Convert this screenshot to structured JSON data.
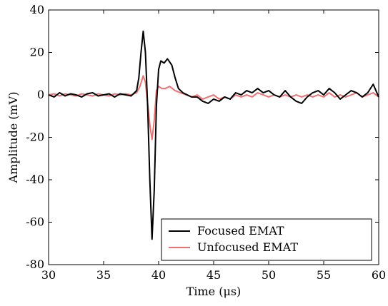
{
  "chart_data": {
    "type": "line",
    "title": "",
    "xlabel": "Time (μs)",
    "ylabel": "Amplitude (mV)",
    "xlim": [
      30,
      60
    ],
    "ylim": [
      -80,
      40
    ],
    "x_ticks": [
      30,
      35,
      40,
      45,
      50,
      55,
      60
    ],
    "y_ticks": [
      -80,
      -60,
      -40,
      -20,
      0,
      20,
      40
    ],
    "x_tick_labels": [
      "30",
      "35",
      "40",
      "45",
      "50",
      "55",
      "60"
    ],
    "y_tick_labels": [
      "-80",
      "-60",
      "-40",
      "-20",
      "0",
      "20",
      "40"
    ],
    "grid": false,
    "legend_position": "lower-right",
    "series": [
      {
        "name": "Focused EMAT",
        "color": "#000000",
        "x": [
          30,
          30.5,
          31,
          31.5,
          32,
          32.5,
          33,
          33.5,
          34,
          34.5,
          35,
          35.5,
          36,
          36.5,
          37,
          37.5,
          38,
          38.2,
          38.4,
          38.6,
          38.8,
          39.0,
          39.2,
          39.4,
          39.6,
          39.8,
          40.0,
          40.2,
          40.5,
          40.8,
          41.2,
          41.5,
          41.8,
          42.2,
          42.6,
          43.0,
          43.5,
          44.0,
          44.5,
          45.0,
          45.5,
          46.0,
          46.5,
          47.0,
          47.5,
          48.0,
          48.5,
          49.0,
          49.5,
          50.0,
          50.5,
          51.0,
          51.5,
          52.0,
          52.5,
          53.0,
          53.5,
          54.0,
          54.5,
          55.0,
          55.5,
          56.0,
          56.5,
          57.0,
          57.5,
          58.0,
          58.5,
          59.0,
          59.5,
          60.0
        ],
        "y": [
          0,
          -1,
          1,
          -0.5,
          0.5,
          0,
          -1,
          0.5,
          1,
          -0.5,
          0,
          0.5,
          -1,
          0.5,
          0,
          -0.5,
          2,
          8,
          20,
          30,
          20,
          -5,
          -40,
          -68,
          -45,
          -5,
          12,
          16,
          15,
          17,
          14,
          8,
          3,
          1,
          0,
          -1,
          -1,
          -3,
          -4,
          -2,
          -3,
          -1,
          -2,
          1,
          0,
          2,
          1,
          3,
          1,
          2,
          0,
          -1,
          2,
          -1,
          -3,
          -4,
          -1,
          1,
          2,
          0,
          3,
          1,
          -2,
          0,
          2,
          1,
          -1,
          1,
          5,
          -1
        ]
      },
      {
        "name": "Unfocused EMAT",
        "color": "#f07070",
        "x": [
          30,
          30.5,
          31,
          31.5,
          32,
          32.5,
          33,
          33.5,
          34,
          34.5,
          35,
          35.5,
          36,
          36.5,
          37,
          37.5,
          38,
          38.3,
          38.6,
          38.8,
          39.0,
          39.2,
          39.4,
          39.6,
          39.8,
          40.0,
          40.3,
          40.6,
          41.0,
          41.5,
          42.0,
          42.5,
          43.0,
          43.5,
          44.0,
          44.5,
          45.0,
          45.5,
          46.0,
          46.5,
          47.0,
          47.5,
          48.0,
          48.5,
          49.0,
          49.5,
          50.0,
          50.5,
          51.0,
          51.5,
          52.0,
          52.5,
          53.0,
          53.5,
          54.0,
          54.5,
          55.0,
          55.5,
          56.0,
          56.5,
          57.0,
          57.5,
          58.0,
          58.5,
          59.0,
          59.5,
          60.0
        ],
        "y": [
          0,
          0.5,
          -0.5,
          0.5,
          0,
          -0.5,
          0.5,
          0,
          -0.5,
          0.5,
          0,
          -0.5,
          0.5,
          0,
          0.5,
          0,
          1,
          4,
          9,
          6,
          -4,
          -14,
          -21,
          -12,
          2,
          4,
          3,
          3,
          4,
          2,
          1,
          0,
          -1,
          0,
          -2,
          -1,
          0,
          -2,
          -1,
          -2,
          0,
          -1,
          0,
          -1,
          1,
          0,
          -1,
          0,
          -1,
          0,
          -1,
          0,
          -1,
          0,
          -1,
          0,
          -1,
          1,
          -1,
          0,
          -1,
          0,
          1,
          -1,
          0,
          1,
          -1
        ]
      }
    ]
  }
}
